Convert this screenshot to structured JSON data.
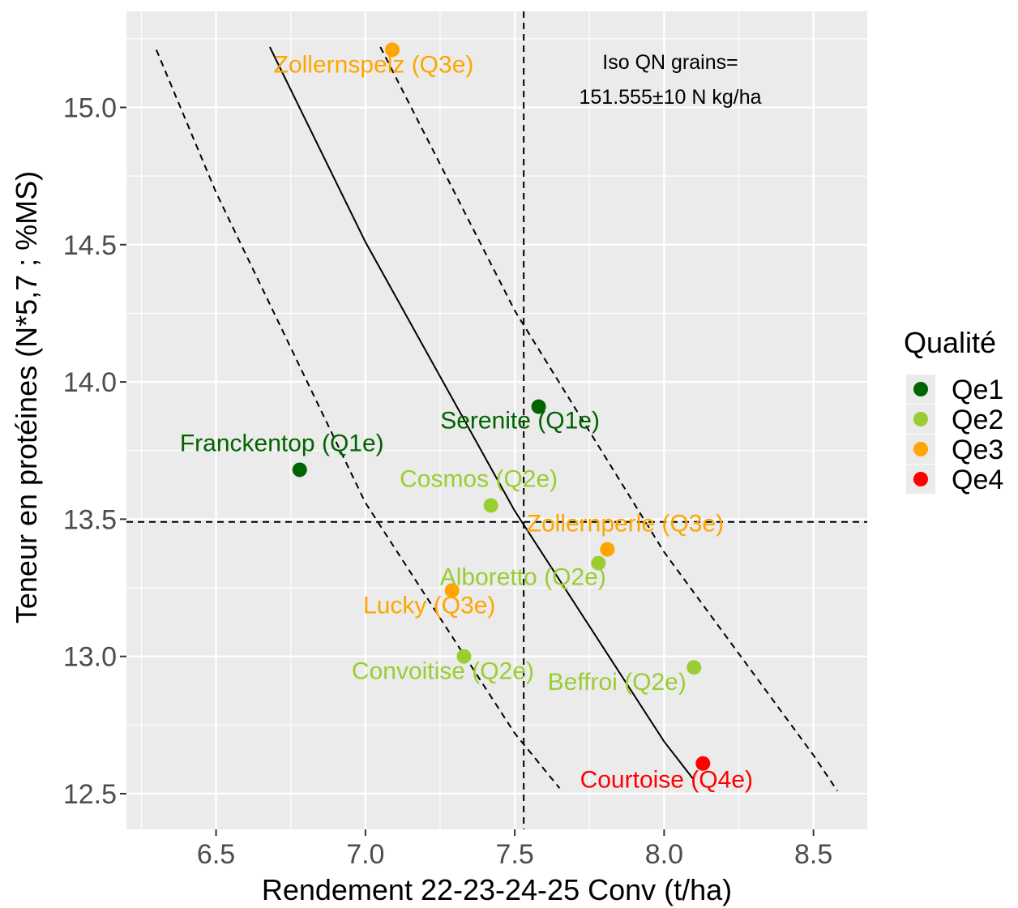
{
  "chart_data": {
    "type": "scatter",
    "xlabel": "Rendement 22-23-24-25 Conv (t/ha)",
    "ylabel": "Teneur en protéines (N*5,7 ; %MS)",
    "xlim": [
      6.2,
      8.68
    ],
    "ylim": [
      12.37,
      15.35
    ],
    "x_ticks": [
      "6.5",
      "7.0",
      "7.5",
      "8.0",
      "8.5"
    ],
    "y_ticks": [
      "12.5",
      "13.0",
      "13.5",
      "14.0",
      "14.5",
      "15.0"
    ],
    "grid": true,
    "legend": {
      "title": "Qualité",
      "position": "right",
      "entries": [
        {
          "label": "Qe1",
          "color": "#006400"
        },
        {
          "label": "Qe2",
          "color": "#9ACD32"
        },
        {
          "label": "Qe3",
          "color": "#FFA500"
        },
        {
          "label": "Qe4",
          "color": "#FF0000"
        }
      ]
    },
    "points": [
      {
        "label": "Zollernspelz (Q3e)",
        "x": 7.09,
        "y": 15.21,
        "quality": "Qe3"
      },
      {
        "label": "Serenite (Q1e)",
        "x": 7.58,
        "y": 13.91,
        "quality": "Qe1"
      },
      {
        "label": "Franckentop (Q1e)",
        "x": 6.78,
        "y": 13.68,
        "quality": "Qe1"
      },
      {
        "label": "Cosmos (Q2e)",
        "x": 7.42,
        "y": 13.55,
        "quality": "Qe2"
      },
      {
        "label": "Zollernperle (Q3e)",
        "x": 7.81,
        "y": 13.39,
        "quality": "Qe3"
      },
      {
        "label": "Alboretto (Q2e)",
        "x": 7.78,
        "y": 13.34,
        "quality": "Qe2"
      },
      {
        "label": "Lucky (Q3e)",
        "x": 7.29,
        "y": 13.24,
        "quality": "Qe3"
      },
      {
        "label": "Convoitise (Q2e)",
        "x": 7.33,
        "y": 13.0,
        "quality": "Qe2"
      },
      {
        "label": "Beffroi (Q2e)",
        "x": 8.1,
        "y": 12.96,
        "quality": "Qe2"
      },
      {
        "label": "Courtoise (Q4e)",
        "x": 8.13,
        "y": 12.61,
        "quality": "Qe4"
      }
    ],
    "reference_lines": {
      "vertical_x": 7.53,
      "horizontal_y": 13.49
    },
    "iso_curves": {
      "center": [
        [
          6.68,
          15.22
        ],
        [
          7.0,
          14.51
        ],
        [
          7.5,
          13.53
        ],
        [
          8.0,
          12.69
        ],
        [
          8.1,
          12.55
        ]
      ],
      "lower": [
        [
          6.3,
          15.21
        ],
        [
          6.5,
          14.69
        ],
        [
          7.0,
          13.56
        ],
        [
          7.5,
          12.72
        ],
        [
          7.65,
          12.52
        ]
      ],
      "upper": [
        [
          7.05,
          15.22
        ],
        [
          7.5,
          14.26
        ],
        [
          8.0,
          13.38
        ],
        [
          8.5,
          12.64
        ],
        [
          8.58,
          12.51
        ]
      ]
    },
    "annotation": {
      "line1": "Iso QN grains=",
      "line2": "151.555±10 N kg/ha"
    }
  }
}
